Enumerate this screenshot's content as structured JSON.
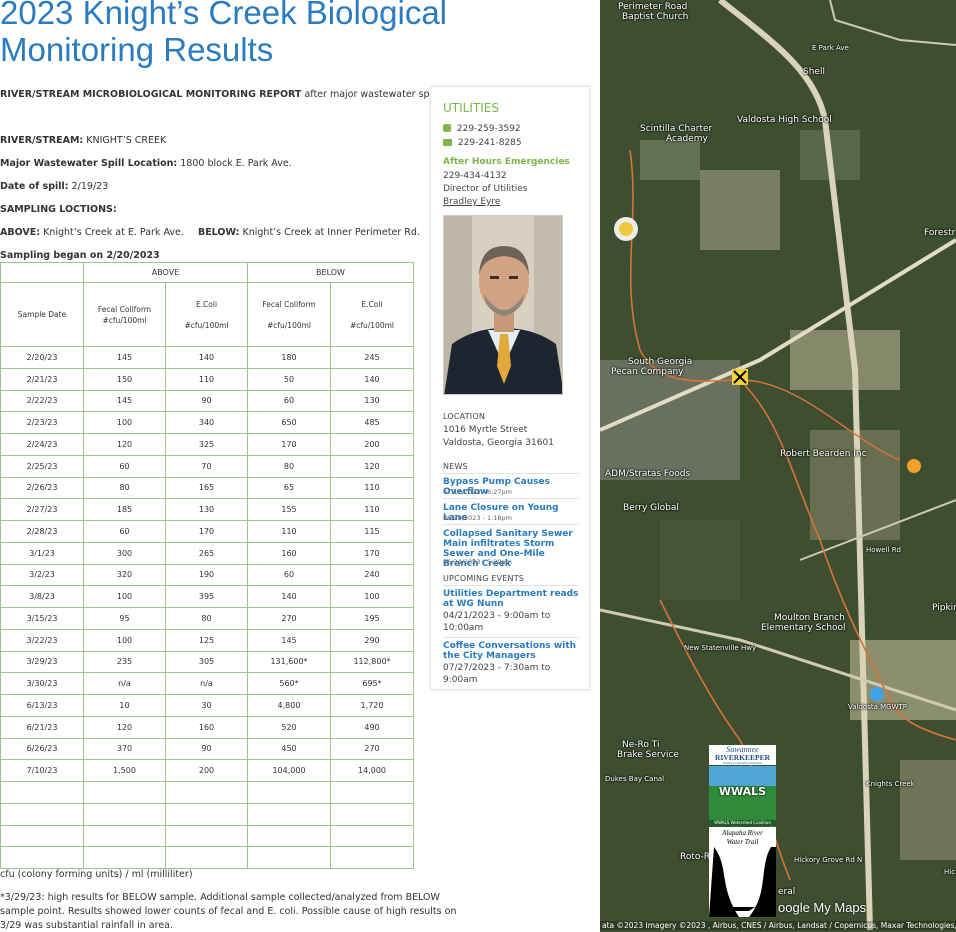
{
  "page": {
    "title": "2023 Knight’s Creek Biological Monitoring Results",
    "report_bold": "RIVER/STREAM MICROBIOLOGICAL MONITORING REPORT",
    "report_rest": "after major wastewater spill.",
    "river_label": "RIVER/STREAM:",
    "river_value": "KNIGHT’S CREEK",
    "spill_label": "Major Wastewater Spill Location:",
    "spill_value": "1800 block E. Park Ave.",
    "date_label": "Date of spill:",
    "date_value": "2/19/23",
    "locations_label": "SAMPLING LOCTIONS:",
    "above_label": "ABOVE:",
    "above_value": "Knight’s Creek at E. Park Ave.",
    "below_label": "BELOW:",
    "below_value": "Knight’s Creek at Inner Perimeter Rd.",
    "began": "Sampling began on 2/20/2023",
    "units_note": "cfu (colony forming units) / ml (milliliter)",
    "footnote_1": "*3/29/23: high results for BELOW sample. Additional sample collected/analyzed from BELOW",
    "footnote_2": "sample point. Results showed lower counts of fecal and E. coli. Possible cause of high results on",
    "footnote_3": "3/29 was substantial rainfall in area."
  },
  "table": {
    "group_above": "ABOVE",
    "group_below": "BELOW",
    "col_date": "Sample Date",
    "col_fecal_1": "Fecal Coliform",
    "col_fecal_2": "#cfu/100ml",
    "col_ecoli_1": "E.Coli",
    "col_ecoli_2": "#cfu/100ml",
    "rows": [
      [
        "2/20/23",
        "145",
        "140",
        "180",
        "245"
      ],
      [
        "2/21/23",
        "150",
        "110",
        "50",
        "140"
      ],
      [
        "2/22/23",
        "145",
        "90",
        "60",
        "130"
      ],
      [
        "2/23/23",
        "100",
        "340",
        "650",
        "485"
      ],
      [
        "2/24/23",
        "120",
        "325",
        "170",
        "200"
      ],
      [
        "2/25/23",
        "60",
        "70",
        "80",
        "120"
      ],
      [
        "2/26/23",
        "80",
        "165",
        "65",
        "110"
      ],
      [
        "2/27/23",
        "185",
        "130",
        "155",
        "110"
      ],
      [
        "2/28/23",
        "60",
        "170",
        "110",
        "115"
      ],
      [
        "3/1/23",
        "300",
        "265",
        "160",
        "170"
      ],
      [
        "3/2/23",
        "320",
        "190",
        "60",
        "240"
      ],
      [
        "3/8/23",
        "100",
        "395",
        "140",
        "100"
      ],
      [
        "3/15/23",
        "95",
        "80",
        "270",
        "195"
      ],
      [
        "3/22/23",
        "100",
        "125",
        "145",
        "290"
      ],
      [
        "3/29/23",
        "235",
        "305",
        "131,600*",
        "112,800*"
      ],
      [
        "3/30/23",
        "n/a",
        "n/a",
        "560*",
        "695*"
      ],
      [
        "6/13/23",
        "10",
        "30",
        "4,800",
        "1,720"
      ],
      [
        "6/21/23",
        "120",
        "160",
        "520",
        "490"
      ],
      [
        "6/26/23",
        "370",
        "90",
        "450",
        "270"
      ],
      [
        "7/10/23",
        "1,500",
        "200",
        "104,000",
        "14,000"
      ],
      [
        "",
        "",
        "",
        "",
        ""
      ],
      [
        "",
        "",
        "",
        "",
        ""
      ],
      [
        "",
        "",
        "",
        "",
        ""
      ],
      [
        "",
        "",
        "",
        "",
        ""
      ]
    ]
  },
  "sidebar": {
    "title": "UTILITIES",
    "phone": "229-259-3592",
    "fax": "229-241-8285",
    "after_hours_label": "After Hours Emergencies",
    "after_hours_phone": "229-434-4132",
    "director": "Director of Utilities",
    "director_name": "Bradley Eyre",
    "location_head": "LOCATION",
    "address_1": "1016 Myrtle Street",
    "address_2": "Valdosta, Georgia 31601",
    "news_head": "NEWS",
    "news": [
      {
        "title": "Bypass Pump Causes Overflow",
        "date": "07/11/2023 - 6:27pm"
      },
      {
        "title": "Lane Closure on Young Lane",
        "date": "06/28/2023 - 1:18pm"
      },
      {
        "title": "Collapsed Sanitary Sewer Main infiltrates Storm Sewer and One-Mile Branch Creek",
        "date": "06/24/2023 - 5:29pm"
      }
    ],
    "events_head": "UPCOMING EVENTS",
    "events": [
      {
        "title": "Utilities Department reads at WG Nunn",
        "time": "04/21/2023 - 9:00am to 10:00am"
      },
      {
        "title": "Coffee Conversations with the City Managers",
        "time": "07/27/2023 - 7:30am to 9:00am"
      }
    ]
  },
  "map": {
    "labels": {
      "perimeter": "Perimeter Road",
      "baptist": "Baptist Church",
      "shell": "Shell",
      "e_park": "E Park Ave",
      "scintilla_1": "Scintilla Charter",
      "scintilla_2": "Academy",
      "vhs": "Valdosta High School",
      "forest": "Forestr",
      "sgpc_1": "South Georgia",
      "sgpc_2": "Pecan Company",
      "robert": "Robert Bearden Inc",
      "adm": "ADM/Stratas Foods",
      "berry": "Berry Global",
      "howell": "Howell Rd",
      "pipkin": "Pipkin",
      "moulton_1": "Moulton Branch",
      "moulton_2": "Elementary School",
      "new_statenville": "New Statenville Hwy",
      "mgwtp": "Valdosta MGWTP",
      "nero_1": "Ne-Ro Ti",
      "nero_2": "Brake Service",
      "dukes": "Dukes Bay Canal",
      "knights": "Knights Creek",
      "roto": "Roto-R",
      "hickory": "Hickory Grove Rd N",
      "eral": "eral",
      "hic": "Hic"
    },
    "brand": "oogle My Maps",
    "attribution": "ata ©2023 Imagery ©2023 , Airbus, CNES / Airbus, Landsat / Copernicus, Maxar Technologies, USDA",
    "suwannee": "Suwannee",
    "riverkeeper": "RIVERKEEPER",
    "rk_tag": "Working for Watershed Conservation",
    "wwals": "WWALS",
    "wwals_sub": "WWALS Watershed Coalition",
    "alapaha_1": "Alapaha River",
    "alapaha_2": "Water Trail"
  }
}
